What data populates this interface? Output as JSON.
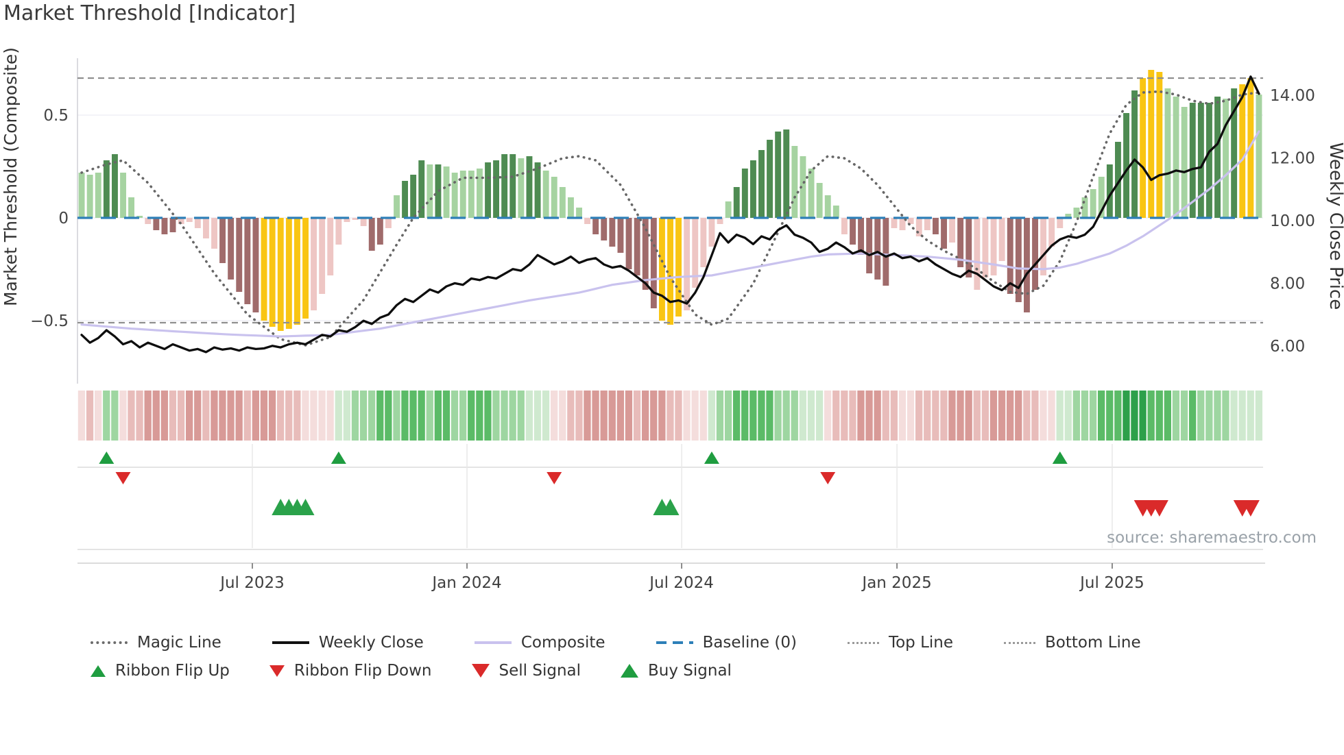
{
  "title": "Market Threshold [Indicator]",
  "source_text": "source: sharemaestro.com",
  "axes": {
    "left_label": "Market Threshold (Composite)",
    "right_label": "Weekly Close Price",
    "left_ticks": [
      {
        "v": 0.5,
        "label": "0.5"
      },
      {
        "v": 0.0,
        "label": "0"
      },
      {
        "v": -0.5,
        "label": "−0.5"
      }
    ],
    "right_ticks": [
      {
        "p": 14,
        "label": "14.00"
      },
      {
        "p": 12,
        "label": "12.00"
      },
      {
        "p": 10,
        "label": "10.00"
      },
      {
        "p": 8,
        "label": "8.00"
      },
      {
        "p": 6,
        "label": "6.00"
      }
    ],
    "x_ticks": [
      {
        "week": 20.59,
        "label": "Jul 2023"
      },
      {
        "week": 46.48,
        "label": "Jan 2024"
      },
      {
        "week": 72.37,
        "label": "Jul 2024"
      },
      {
        "week": 98.34,
        "label": "Jan 2025"
      },
      {
        "week": 124.3,
        "label": "Jul 2025"
      }
    ]
  },
  "colors": {
    "bar_light_green": "#a6d3a1",
    "bar_dark_green": "#4e8b52",
    "bar_light_pink": "#eec6c4",
    "bar_brown": "#a06b6b",
    "bar_gold": "#f9c513",
    "magic_line": "#676767",
    "weekly_close": "#0e0e0e",
    "composite_line": "#c9c2ee",
    "baseline": "#2d7fb8",
    "threshold_lines": "#8f8f8f",
    "gridline": "#ececf4",
    "spine": "#cfcfd6",
    "separator": "#dcdcdc",
    "tick_text": "#444444",
    "axis_text": "#333333",
    "source_text_color": "#9aa2a9",
    "flip_up_green": "#1f9d40",
    "flip_down_red": "#da2a2a",
    "buy_green": "#2aa24a",
    "sell_red": "#da2a2a",
    "ribbon_palette": {
      "p1": "#f4dddc",
      "p2": "#e8bcba",
      "p3": "#d89a97",
      "g1": "#cfe9cf",
      "g2": "#9ed6a1",
      "g3": "#5bbb67",
      "g4": "#2da04a"
    }
  },
  "chart_data": {
    "type": "bar",
    "subtype": "weekly composite histogram with overlaid lines, signal ribbon and trade markers",
    "weeks": 143,
    "x_range_note": "weekly bars, Feb 2023 through Nov 2025",
    "ylim_left": [
      -0.81,
      0.78
    ],
    "ylim_right": [
      5.4,
      15.2
    ],
    "baseline": 0,
    "top_line": 0.68,
    "bottom_line": -0.51,
    "composite_bars": {
      "values": [
        0.22,
        0.21,
        0.22,
        0.28,
        0.31,
        0.22,
        0.1,
        0.01,
        -0.03,
        -0.06,
        -0.08,
        -0.07,
        -0.03,
        -0.02,
        -0.05,
        -0.1,
        -0.15,
        -0.22,
        -0.3,
        -0.36,
        -0.42,
        -0.46,
        -0.5,
        -0.53,
        -0.55,
        -0.54,
        -0.52,
        -0.49,
        -0.45,
        -0.37,
        -0.28,
        -0.13,
        -0.02,
        -0.01,
        -0.04,
        -0.16,
        -0.13,
        -0.05,
        0.11,
        0.18,
        0.21,
        0.28,
        0.26,
        0.26,
        0.25,
        0.22,
        0.23,
        0.23,
        0.24,
        0.27,
        0.28,
        0.31,
        0.31,
        0.29,
        0.3,
        0.27,
        0.23,
        0.2,
        0.15,
        0.1,
        0.05,
        -0.03,
        -0.08,
        -0.11,
        -0.14,
        -0.17,
        -0.25,
        -0.28,
        -0.35,
        -0.44,
        -0.5,
        -0.52,
        -0.48,
        -0.45,
        -0.34,
        -0.24,
        -0.14,
        -0.03,
        0.08,
        0.15,
        0.24,
        0.28,
        0.33,
        0.38,
        0.42,
        0.43,
        0.35,
        0.3,
        0.24,
        0.17,
        0.11,
        0.06,
        -0.08,
        -0.13,
        -0.18,
        -0.27,
        -0.3,
        -0.33,
        -0.05,
        -0.06,
        -0.03,
        -0.09,
        -0.06,
        -0.08,
        -0.15,
        -0.12,
        -0.24,
        -0.29,
        -0.35,
        -0.29,
        -0.28,
        -0.21,
        -0.37,
        -0.41,
        -0.46,
        -0.35,
        -0.28,
        -0.14,
        -0.05,
        0.02,
        0.05,
        0.1,
        0.14,
        0.2,
        0.26,
        0.37,
        0.51,
        0.62,
        0.68,
        0.72,
        0.71,
        0.63,
        0.59,
        0.54,
        0.56,
        0.56,
        0.56,
        0.59,
        0.58,
        0.63,
        0.65,
        0.68,
        0.6
      ],
      "colors": "LLLDDLLLPBBBPPPPPBBBBBGGGGGGPPPPPPPBBPLDDDLDLLLLLDDDDLDDLLLLLPBBBBBBBBGGGPPPPPLDDDDDDDLLLLLLPBBBBBPPPPPBBPBBPPPPBBBBPPPLLLLLDDDDGGGLLLDDDDLDGGL",
      "color_legend": {
        "L": "light green",
        "D": "dark green",
        "P": "light pink",
        "B": "brown",
        "G": "gold highlight"
      }
    },
    "weekly_close": [
      6.35,
      6.1,
      6.25,
      6.5,
      6.3,
      6.05,
      6.15,
      5.95,
      6.1,
      6.0,
      5.9,
      6.05,
      5.95,
      5.85,
      5.9,
      5.8,
      5.95,
      5.88,
      5.92,
      5.85,
      5.95,
      5.9,
      5.92,
      6.0,
      5.95,
      6.05,
      6.1,
      6.05,
      6.2,
      6.35,
      6.3,
      6.5,
      6.45,
      6.6,
      6.8,
      6.7,
      6.9,
      7.0,
      7.3,
      7.5,
      7.4,
      7.6,
      7.8,
      7.7,
      7.9,
      8.0,
      7.95,
      8.15,
      8.1,
      8.2,
      8.15,
      8.3,
      8.45,
      8.4,
      8.6,
      8.9,
      8.75,
      8.6,
      8.7,
      8.85,
      8.65,
      8.75,
      8.8,
      8.6,
      8.5,
      8.55,
      8.4,
      8.2,
      8.0,
      7.7,
      7.6,
      7.4,
      7.45,
      7.35,
      7.7,
      8.2,
      8.9,
      9.6,
      9.3,
      9.55,
      9.45,
      9.25,
      9.5,
      9.4,
      9.7,
      9.85,
      9.55,
      9.45,
      9.3,
      9.0,
      9.1,
      9.3,
      9.15,
      8.95,
      9.05,
      8.9,
      9.0,
      8.85,
      8.95,
      8.8,
      8.85,
      8.7,
      8.8,
      8.6,
      8.45,
      8.3,
      8.2,
      8.4,
      8.3,
      8.1,
      7.9,
      7.78,
      8.0,
      7.85,
      8.3,
      8.6,
      8.9,
      9.2,
      9.4,
      9.5,
      9.45,
      9.55,
      9.8,
      10.3,
      10.8,
      11.2,
      11.6,
      11.95,
      11.7,
      11.3,
      11.45,
      11.5,
      11.6,
      11.55,
      11.65,
      11.7,
      12.2,
      12.45,
      13.05,
      13.5,
      13.95,
      14.6,
      14.05
    ],
    "magic_line_anchors": [
      [
        0,
        0.22
      ],
      [
        3,
        0.26
      ],
      [
        5,
        0.28
      ],
      [
        8,
        0.17
      ],
      [
        12,
        -0.03
      ],
      [
        16,
        -0.27
      ],
      [
        20,
        -0.47
      ],
      [
        24,
        -0.59
      ],
      [
        27,
        -0.62
      ],
      [
        30,
        -0.58
      ],
      [
        34,
        -0.4
      ],
      [
        38,
        -0.13
      ],
      [
        40,
        0.0
      ],
      [
        43,
        0.13
      ],
      [
        46,
        0.195
      ],
      [
        49,
        0.195
      ],
      [
        52,
        0.2
      ],
      [
        55,
        0.24
      ],
      [
        58,
        0.29
      ],
      [
        60,
        0.3
      ],
      [
        62,
        0.28
      ],
      [
        65,
        0.16
      ],
      [
        68,
        -0.05
      ],
      [
        71,
        -0.29
      ],
      [
        74,
        -0.47
      ],
      [
        76,
        -0.52
      ],
      [
        78,
        -0.49
      ],
      [
        81,
        -0.32
      ],
      [
        84,
        -0.07
      ],
      [
        86,
        0.1
      ],
      [
        88,
        0.23
      ],
      [
        90,
        0.3
      ],
      [
        92,
        0.29
      ],
      [
        94,
        0.24
      ],
      [
        96,
        0.16
      ],
      [
        98,
        0.06
      ],
      [
        100,
        -0.04
      ],
      [
        102,
        -0.11
      ],
      [
        104,
        -0.16
      ],
      [
        106,
        -0.2
      ],
      [
        108,
        -0.25
      ],
      [
        110,
        -0.31
      ],
      [
        112,
        -0.36
      ],
      [
        114,
        -0.37
      ],
      [
        116,
        -0.33
      ],
      [
        118,
        -0.21
      ],
      [
        120,
        -0.02
      ],
      [
        122,
        0.2
      ],
      [
        124,
        0.41
      ],
      [
        126,
        0.55
      ],
      [
        128,
        0.61
      ],
      [
        130,
        0.615
      ],
      [
        132,
        0.6
      ],
      [
        134,
        0.57
      ],
      [
        136,
        0.555
      ],
      [
        138,
        0.57
      ],
      [
        140,
        0.6
      ],
      [
        142,
        0.61
      ]
    ],
    "composite_price_anchors": [
      [
        0,
        6.68
      ],
      [
        6,
        6.55
      ],
      [
        12,
        6.45
      ],
      [
        18,
        6.36
      ],
      [
        24,
        6.3
      ],
      [
        30,
        6.35
      ],
      [
        36,
        6.55
      ],
      [
        42,
        6.85
      ],
      [
        48,
        7.15
      ],
      [
        54,
        7.45
      ],
      [
        60,
        7.7
      ],
      [
        64,
        7.95
      ],
      [
        68,
        8.1
      ],
      [
        72,
        8.2
      ],
      [
        76,
        8.25
      ],
      [
        80,
        8.45
      ],
      [
        84,
        8.65
      ],
      [
        88,
        8.85
      ],
      [
        90,
        8.92
      ],
      [
        94,
        8.95
      ],
      [
        98,
        8.9
      ],
      [
        102,
        8.85
      ],
      [
        106,
        8.75
      ],
      [
        110,
        8.6
      ],
      [
        113,
        8.47
      ],
      [
        116,
        8.45
      ],
      [
        118,
        8.5
      ],
      [
        120,
        8.62
      ],
      [
        124,
        8.95
      ],
      [
        126,
        9.2
      ],
      [
        128,
        9.5
      ],
      [
        130,
        9.85
      ],
      [
        132,
        10.2
      ],
      [
        134,
        10.6
      ],
      [
        136,
        11.0
      ],
      [
        138,
        11.45
      ],
      [
        140,
        11.95
      ],
      [
        142,
        12.85
      ]
    ],
    "ribbon": [
      "p1",
      "p2",
      "p1",
      "g2",
      "g2",
      "p1",
      "p2",
      "p2",
      "p3",
      "p3",
      "p3",
      "p2",
      "p2",
      "p3",
      "p3",
      "p2",
      "p3",
      "p3",
      "p3",
      "p3",
      "p2",
      "p3",
      "p3",
      "p3",
      "p2",
      "p2",
      "p2",
      "p1",
      "p1",
      "p1",
      "p1",
      "g1",
      "g1",
      "g2",
      "g2",
      "g2",
      "g3",
      "g3",
      "g2",
      "g3",
      "g3",
      "g3",
      "g2",
      "g3",
      "g3",
      "g2",
      "g2",
      "g3",
      "g3",
      "g3",
      "g2",
      "g2",
      "g2",
      "g2",
      "g1",
      "g1",
      "g1",
      "p1",
      "p1",
      "p2",
      "p2",
      "p3",
      "p3",
      "p3",
      "p3",
      "p3",
      "p3",
      "p2",
      "p3",
      "p3",
      "p3",
      "p2",
      "p2",
      "p1",
      "p1",
      "p1",
      "g1",
      "g2",
      "g2",
      "g3",
      "g3",
      "g3",
      "g3",
      "g3",
      "g2",
      "g2",
      "g2",
      "g1",
      "g1",
      "g1",
      "p1",
      "p2",
      "p2",
      "p2",
      "p3",
      "p3",
      "p3",
      "p2",
      "p2",
      "p1",
      "p1",
      "p2",
      "p2",
      "p2",
      "p2",
      "p3",
      "p3",
      "p3",
      "p2",
      "p2",
      "p3",
      "p3",
      "p3",
      "p3",
      "p2",
      "p2",
      "p1",
      "p1",
      "g1",
      "g1",
      "g2",
      "g2",
      "g2",
      "g3",
      "g3",
      "g3",
      "g4",
      "g4",
      "g4",
      "g3",
      "g3",
      "g3",
      "g2",
      "g2",
      "g3",
      "g2",
      "g2",
      "g2",
      "g2",
      "g1",
      "g1",
      "g1",
      "g1"
    ],
    "signals": {
      "ribbon_flip_up_weeks": [
        3,
        31,
        76,
        118
      ],
      "ribbon_flip_down_weeks": [
        5,
        57,
        90
      ],
      "buy_signal_weeks": [
        24,
        25,
        26,
        27,
        70,
        71
      ],
      "sell_signal_weeks": [
        128,
        129,
        130,
        140,
        141
      ]
    },
    "legend_position": "bottom",
    "grid": "horizontal faint lines at 0.5, 0, -0.5"
  },
  "legend": {
    "row1": [
      {
        "label": "Magic Line"
      },
      {
        "label": "Weekly Close"
      },
      {
        "label": "Composite"
      },
      {
        "label": "Baseline (0)"
      },
      {
        "label": "Top Line"
      },
      {
        "label": "Bottom Line"
      }
    ],
    "row2": [
      {
        "label": "Ribbon Flip Up"
      },
      {
        "label": "Ribbon Flip Down"
      },
      {
        "label": "Sell Signal"
      },
      {
        "label": "Buy Signal"
      }
    ]
  }
}
